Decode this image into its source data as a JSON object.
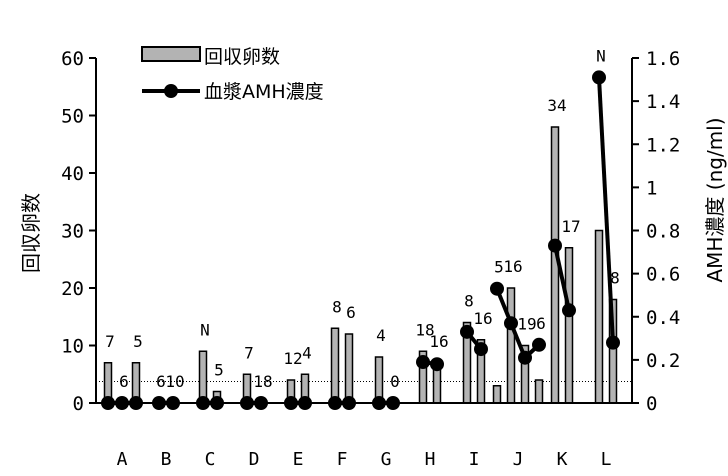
{
  "chart_data": {
    "type": "bar",
    "categories": [
      "A",
      "B",
      "C",
      "D",
      "E",
      "F",
      "G",
      "H",
      "I",
      "J",
      "K",
      "L"
    ],
    "ylabel_left": "回収卵数",
    "ylabel_right": "AMH濃度 (ng/ml)",
    "ylim_left": [
      0,
      60
    ],
    "ylim_right": [
      0,
      1.6
    ],
    "yticks_left": [
      "0",
      "10",
      "20",
      "30",
      "40",
      "50",
      "60"
    ],
    "yticks_right": [
      "0",
      "0.2",
      "0.4",
      "0.6",
      "0.8",
      "1",
      "1.2",
      "1.4",
      "1.6"
    ],
    "legend": {
      "bar_label": "回収卵数",
      "line_label": "血漿AMH濃度",
      "position": "top-left"
    },
    "threshold_line_right": 0.1,
    "colors": {
      "bar_fill": "#b3b3b3",
      "bar_stroke": "#000000",
      "line": "#000000"
    },
    "groups": [
      {
        "category": "A",
        "bars": [
          7,
          0,
          7
        ],
        "amh": [
          0,
          0,
          0
        ],
        "labels": [
          "7",
          "6",
          "5"
        ]
      },
      {
        "category": "B",
        "bars": [
          0,
          0
        ],
        "amh": [
          0,
          0
        ],
        "labels": [
          "6",
          "10"
        ]
      },
      {
        "category": "C",
        "bars": [
          9,
          2
        ],
        "amh": [
          0,
          0
        ],
        "labels": [
          "N",
          "5"
        ]
      },
      {
        "category": "D",
        "bars": [
          5,
          0
        ],
        "amh": [
          0,
          0
        ],
        "labels": [
          "7",
          "18"
        ]
      },
      {
        "category": "E",
        "bars": [
          4,
          5
        ],
        "amh": [
          0,
          0
        ],
        "labels": [
          "12",
          "4"
        ]
      },
      {
        "category": "F",
        "bars": [
          13,
          12
        ],
        "amh": [
          0,
          0
        ],
        "labels": [
          "8",
          "6"
        ]
      },
      {
        "category": "G",
        "bars": [
          8,
          0
        ],
        "amh": [
          0,
          0
        ],
        "labels": [
          "4",
          "0"
        ]
      },
      {
        "category": "H",
        "bars": [
          9,
          7
        ],
        "amh": [
          0.19,
          0.18
        ],
        "labels": [
          "18",
          "16"
        ]
      },
      {
        "category": "I",
        "bars": [
          14,
          11
        ],
        "amh": [
          0.33,
          0.25
        ],
        "labels": [
          "8",
          "16"
        ]
      },
      {
        "category": "J",
        "bars": [
          3,
          20,
          10,
          4
        ],
        "amh": [
          0.53,
          0.37,
          0.21,
          0.27
        ],
        "labels": [
          "5",
          "16",
          "19",
          "6"
        ]
      },
      {
        "category": "K",
        "bars": [
          48,
          27
        ],
        "amh": [
          0.73,
          0.43
        ],
        "labels": [
          "34",
          "17"
        ]
      },
      {
        "category": "L",
        "bars": [
          30,
          18
        ],
        "amh": [
          1.51,
          0.28
        ],
        "labels": [
          "N",
          "8"
        ]
      }
    ]
  }
}
